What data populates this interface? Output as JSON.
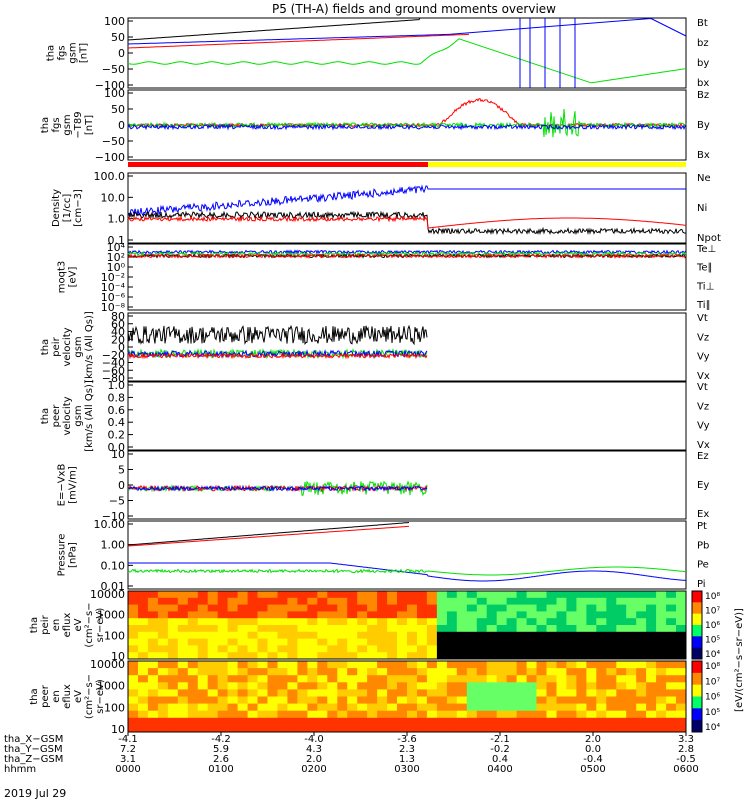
{
  "title": "P5 (TH-A) fields and ground moments overview",
  "date_label": "2019 Jul 29",
  "colors": {
    "black": "#000000",
    "red": "#ff0000",
    "green": "#00e000",
    "blue": "#0000ff",
    "lightgreen": "#33dd33",
    "yellow": "#ffff00"
  },
  "chart_data": [
    {
      "id": "panel-fgs-gsm",
      "type": "line",
      "ylabel": [
        "tha",
        "fgs",
        "gsm",
        "[nT]"
      ],
      "ylim": [
        -100,
        100
      ],
      "yticks": [
        "100",
        "50",
        "0",
        "−50",
        "−100"
      ],
      "legend": [
        {
          "name": "Bt",
          "color": "#000000"
        },
        {
          "name": "bz",
          "color": "#ff0000"
        },
        {
          "name": "by",
          "color": "#00e000"
        },
        {
          "name": "bx",
          "color": "#0000ff"
        }
      ]
    },
    {
      "id": "panel-fgs-gsm-t89",
      "type": "line",
      "ylabel": [
        "tha",
        "fgs",
        "gsm",
        "−T89",
        "[nT]"
      ],
      "ylim": [
        -120,
        120
      ],
      "yticks": [
        "100",
        "50",
        "0",
        "−50",
        "−100"
      ],
      "legend": [
        {
          "name": "Bz",
          "color": "#ff0000"
        },
        {
          "name": "By",
          "color": "#00e000"
        },
        {
          "name": "Bx",
          "color": "#0000ff"
        }
      ]
    },
    {
      "id": "panel-density",
      "type": "line",
      "yscale": "log",
      "ylabel": [
        "Density",
        "[1/cc]",
        "[cm−3]"
      ],
      "yticks": [
        "100.0",
        "10.0",
        "1.0",
        "0.1"
      ],
      "legend": [
        {
          "name": "Ne",
          "color": "#ff0000"
        },
        {
          "name": "Ni",
          "color": "#000000"
        },
        {
          "name": "Npot",
          "color": "#0000ff"
        }
      ]
    },
    {
      "id": "panel-temperature",
      "type": "line",
      "yscale": "log",
      "ylabel": [
        "moqt3",
        "[eV]"
      ],
      "yticks": [
        "10⁴",
        "10²",
        "10⁰",
        "10⁻²",
        "10⁻⁴",
        "10⁻⁶",
        "10⁻⁸"
      ],
      "legend": [
        {
          "name": "Te⊥",
          "color": "#ff0000"
        },
        {
          "name": "Te∥",
          "color": "#000000"
        },
        {
          "name": "Ti⊥",
          "color": "#0000ff"
        },
        {
          "name": "Ti∥",
          "color": "#00e000"
        }
      ]
    },
    {
      "id": "panel-peir-velocity",
      "type": "line",
      "ylabel": [
        "tha",
        "peir",
        "velocity",
        "gsm",
        "[km/s (All Qs)]"
      ],
      "ylim": [
        -80,
        80
      ],
      "yticks": [
        "80",
        "60",
        "40",
        "20",
        "0",
        "−20",
        "−40",
        "−60",
        "−80"
      ],
      "legend": [
        {
          "name": "Vt",
          "color": "#000000"
        },
        {
          "name": "Vz",
          "color": "#ff0000"
        },
        {
          "name": "Vy",
          "color": "#00e000"
        },
        {
          "name": "Vx",
          "color": "#0000ff"
        }
      ]
    },
    {
      "id": "panel-peer-velocity",
      "type": "line",
      "ylabel": [
        "tha",
        "peer",
        "velocity",
        "gsm",
        "[km/s (All Qs)]"
      ],
      "ylim": [
        0,
        1
      ],
      "yticks": [
        "1.0",
        "0.8",
        "0.6",
        "0.4",
        "0.2",
        "0.0"
      ],
      "legend": [
        {
          "name": "Vt",
          "color": "#000000"
        },
        {
          "name": "Vz",
          "color": "#ff0000"
        },
        {
          "name": "Vy",
          "color": "#00e000"
        },
        {
          "name": "Vx",
          "color": "#0000ff"
        }
      ]
    },
    {
      "id": "panel-efield",
      "type": "line",
      "ylabel": [
        "E=−VxB",
        "[mV/m]"
      ],
      "ylim": [
        -12,
        10
      ],
      "yticks": [
        "10",
        "5",
        "0",
        "−5",
        "−10"
      ],
      "legend": [
        {
          "name": "Ez",
          "color": "#ff0000"
        },
        {
          "name": "Ey",
          "color": "#00e000"
        },
        {
          "name": "Ex",
          "color": "#0000ff"
        }
      ]
    },
    {
      "id": "panel-pressure",
      "type": "line",
      "yscale": "log",
      "ylabel": [
        "Pressure",
        "[nPa]"
      ],
      "yticks": [
        "10.00",
        "1.00",
        "0.10",
        "0.01"
      ],
      "legend": [
        {
          "name": "Pt",
          "color": "#000000"
        },
        {
          "name": "Pb",
          "color": "#ff0000"
        },
        {
          "name": "Pe",
          "color": "#00e000"
        },
        {
          "name": "Pi",
          "color": "#0000ff"
        }
      ]
    },
    {
      "id": "panel-peir-spectrogram",
      "type": "heatmap",
      "ylabel": [
        "tha",
        "peir",
        "en",
        "eflux",
        "eV",
        "(cm²−s−",
        "sr−eV)"
      ],
      "yticks": [
        "10000",
        "1000",
        "100",
        "10"
      ],
      "colorbar_ticks": [
        "10⁸",
        "10⁷",
        "10⁶",
        "10⁵",
        "10⁴"
      ]
    },
    {
      "id": "panel-peer-spectrogram",
      "type": "heatmap",
      "ylabel": [
        "tha",
        "peer",
        "en",
        "eflux",
        "eV",
        "(cm²−s−",
        "sr−eV)"
      ],
      "yticks": [
        "10000",
        "1000",
        "100",
        "10"
      ],
      "colorbar_ticks": [
        "10⁸",
        "10⁷",
        "10⁶",
        "10⁵",
        "10⁴"
      ]
    }
  ],
  "colorbar_label": "[eV/(cm²−s−sr−eV)]",
  "colorbar_label_top": "[eV/(cm²−s−sr−eV) (All Qs)]",
  "xaxis": {
    "row_labels": [
      "tha_X−GSM",
      "tha_Y−GSM",
      "tha_Z−GSM",
      "hhmm"
    ],
    "columns": [
      {
        "x": "-4.1",
        "y": "7.2",
        "z": "3.1",
        "t": "0000"
      },
      {
        "x": "-4.2",
        "y": "5.9",
        "z": "2.6",
        "t": "0100"
      },
      {
        "x": "-4.0",
        "y": "4.3",
        "z": "2.0",
        "t": "0200"
      },
      {
        "x": "-3.6",
        "y": "2.3",
        "z": "1.3",
        "t": "0300"
      },
      {
        "x": "-2.1",
        "y": "-0.2",
        "z": "0.4",
        "t": "0400"
      },
      {
        "x": "2.0",
        "y": "0.0",
        "z": "-0.4",
        "t": "0500"
      },
      {
        "x": "3.3",
        "y": "2.8",
        "z": "-0.5",
        "t": "0600"
      }
    ]
  }
}
